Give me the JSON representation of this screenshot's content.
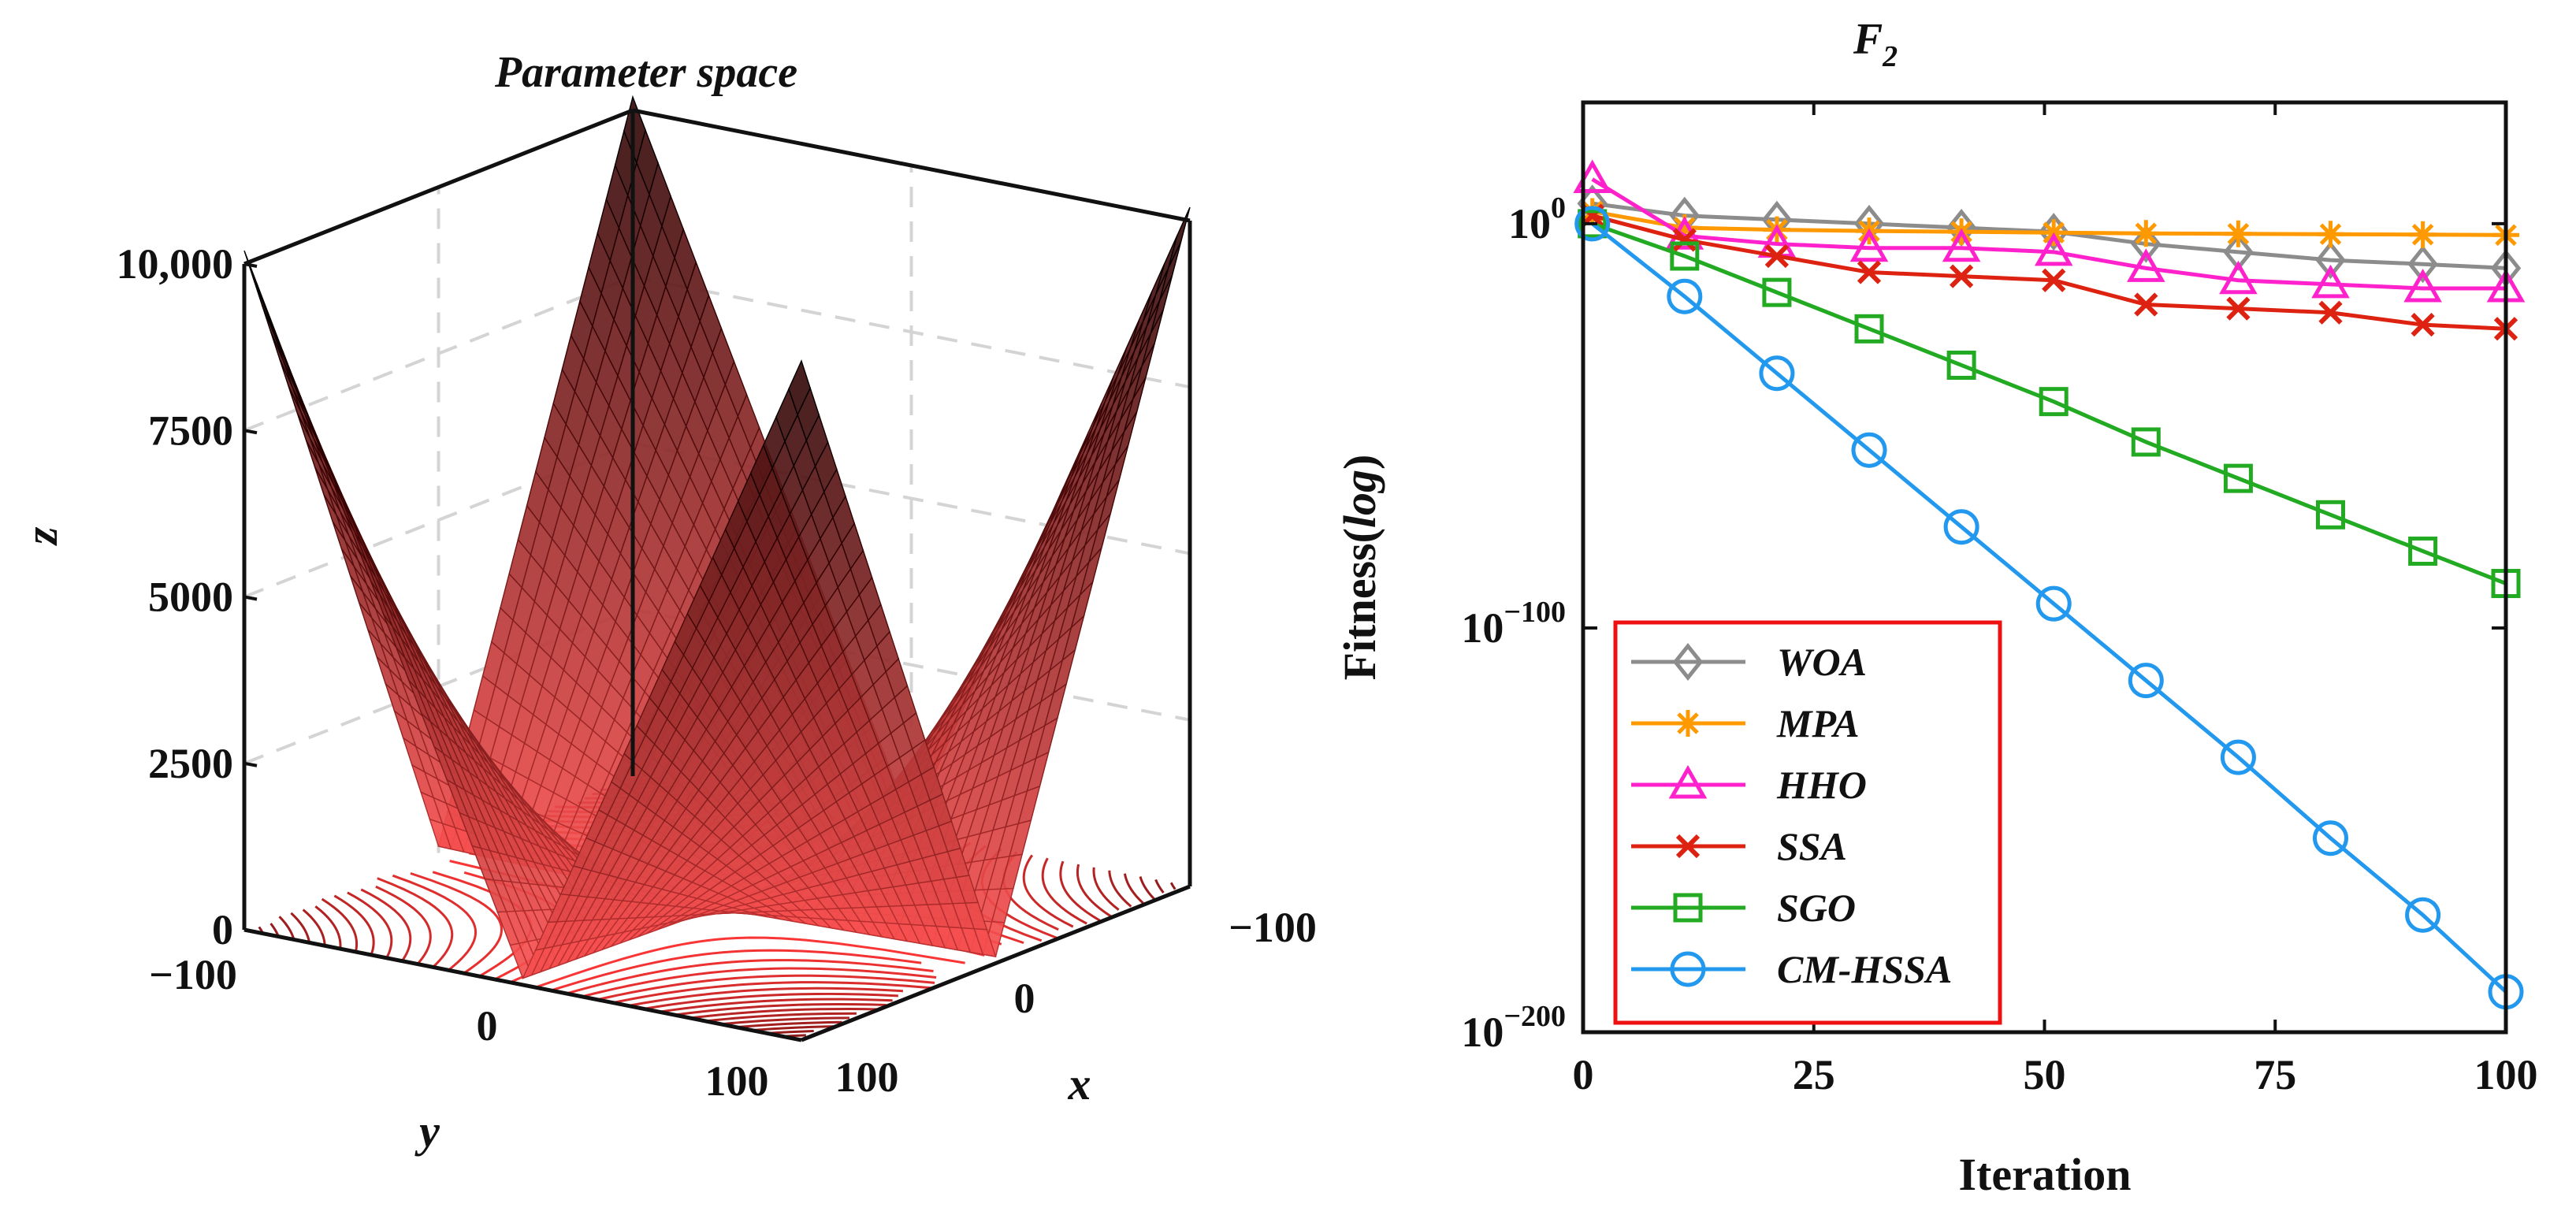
{
  "chart_data": [
    {
      "type": "surface3d",
      "title": "Parameter space",
      "xlabel": "x",
      "ylabel": "y",
      "zlabel": "z",
      "x_ticks": [
        "-100",
        "0",
        "100"
      ],
      "y_ticks": [
        "-100",
        "0",
        "100"
      ],
      "z_ticks": [
        "0",
        "2500",
        "5000",
        "7500",
        "10,000"
      ],
      "x_range": [
        -100,
        100
      ],
      "y_range": [
        -100,
        100
      ],
      "z_range": [
        0,
        10000
      ],
      "function": "|x| + |y| + |x|*|y|",
      "grid": true
    },
    {
      "type": "line",
      "title": "F",
      "title_subscript": "2",
      "xlabel": "Iteration",
      "ylabel_main": "Fitness(",
      "ylabel_italic": "log",
      "ylabel_close": ")",
      "y_scale": "log",
      "xlim": [
        0,
        100
      ],
      "ylim_exponent": [
        -200,
        30
      ],
      "x_ticks": [
        0,
        25,
        50,
        75,
        100
      ],
      "y_tick_base": "10",
      "y_tick_exponents": [
        "0",
        "−100",
        "−200"
      ],
      "legend_position": "bottom-left",
      "series": [
        {
          "name": "WOA",
          "color": "#8c8c8c",
          "marker": "diamond",
          "x": [
            1,
            11,
            21,
            31,
            41,
            51,
            61,
            71,
            81,
            91,
            100
          ],
          "log10_y": [
            5,
            2,
            1,
            0,
            -1,
            -2,
            -5,
            -7,
            -9,
            -10,
            -11
          ]
        },
        {
          "name": "MPA",
          "color": "#ff9900",
          "marker": "asterisk",
          "x": [
            1,
            11,
            21,
            31,
            41,
            51,
            61,
            71,
            81,
            91,
            100
          ],
          "log10_y": [
            3,
            -1,
            -1.5,
            -1.8,
            -2,
            -2.2,
            -2.4,
            -2.5,
            -2.6,
            -2.7,
            -2.8
          ]
        },
        {
          "name": "HHO",
          "color": "#ff22cc",
          "marker": "triangle",
          "x": [
            1,
            11,
            21,
            31,
            41,
            51,
            61,
            71,
            81,
            91,
            100
          ],
          "log10_y": [
            11,
            -3,
            -5,
            -6,
            -6,
            -7,
            -11,
            -14,
            -15,
            -16,
            -16
          ]
        },
        {
          "name": "SSA",
          "color": "#dd2211",
          "marker": "cross",
          "x": [
            1,
            11,
            21,
            31,
            41,
            51,
            61,
            71,
            81,
            91,
            100
          ],
          "log10_y": [
            2,
            -4,
            -8,
            -12,
            -13,
            -14,
            -20,
            -21,
            -22,
            -25,
            -26
          ]
        },
        {
          "name": "SGO",
          "color": "#22aa22",
          "marker": "square",
          "x": [
            1,
            11,
            21,
            31,
            41,
            51,
            61,
            71,
            81,
            91,
            100
          ],
          "log10_y": [
            0,
            -8,
            -17,
            -26,
            -35,
            -44,
            -54,
            -63,
            -72,
            -81,
            -89
          ]
        },
        {
          "name": "CM-HSSA",
          "color": "#2299ee",
          "marker": "circle",
          "x": [
            1,
            11,
            21,
            31,
            41,
            51,
            61,
            71,
            81,
            91,
            100
          ],
          "log10_y": [
            0,
            -18,
            -37,
            -56,
            -75,
            -94,
            -113,
            -132,
            -152,
            -171,
            -190
          ]
        }
      ]
    }
  ]
}
